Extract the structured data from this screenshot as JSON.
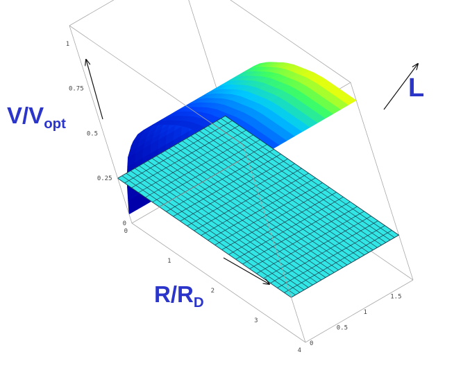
{
  "chart_data": {
    "type": "surface3d",
    "title": "",
    "axis_labels": {
      "vertical": {
        "main": "V/V",
        "sub": "opt"
      },
      "r_axis": {
        "main": "R/R",
        "sub": "D"
      },
      "l_axis": {
        "main": "L"
      }
    },
    "ticks": {
      "vertical": [
        "0",
        "0.25",
        "0.5",
        "0.75",
        "1"
      ],
      "r_axis": [
        "0",
        "1",
        "2",
        "3",
        "4"
      ],
      "l_axis": [
        "0",
        "0.5",
        "1",
        "1.5"
      ]
    },
    "ranges": {
      "r": [
        0,
        4
      ],
      "l": [
        0,
        2
      ],
      "v": [
        0,
        1.1
      ]
    },
    "plane": {
      "v": 0.25,
      "color": "#33e6e6",
      "mesh_color": "#1a3c4a",
      "divisions": 25
    },
    "surface_colormap": [
      "#0000aa",
      "#0044ff",
      "#00c8ff",
      "#40ff60",
      "#ffff00"
    ],
    "surface_samples": {
      "r": [
        0.0,
        0.25,
        0.5,
        0.75,
        1.0,
        1.25,
        1.5,
        1.75,
        2.0,
        2.25,
        2.5,
        2.75,
        3.0,
        3.25,
        3.5,
        3.75,
        4.0
      ],
      "v": [
        0.05,
        0.28,
        0.45,
        0.57,
        0.66,
        0.73,
        0.79,
        0.84,
        0.88,
        0.92,
        0.95,
        0.97,
        0.99,
        1.0,
        1.0,
        1.0,
        1.0
      ]
    }
  }
}
